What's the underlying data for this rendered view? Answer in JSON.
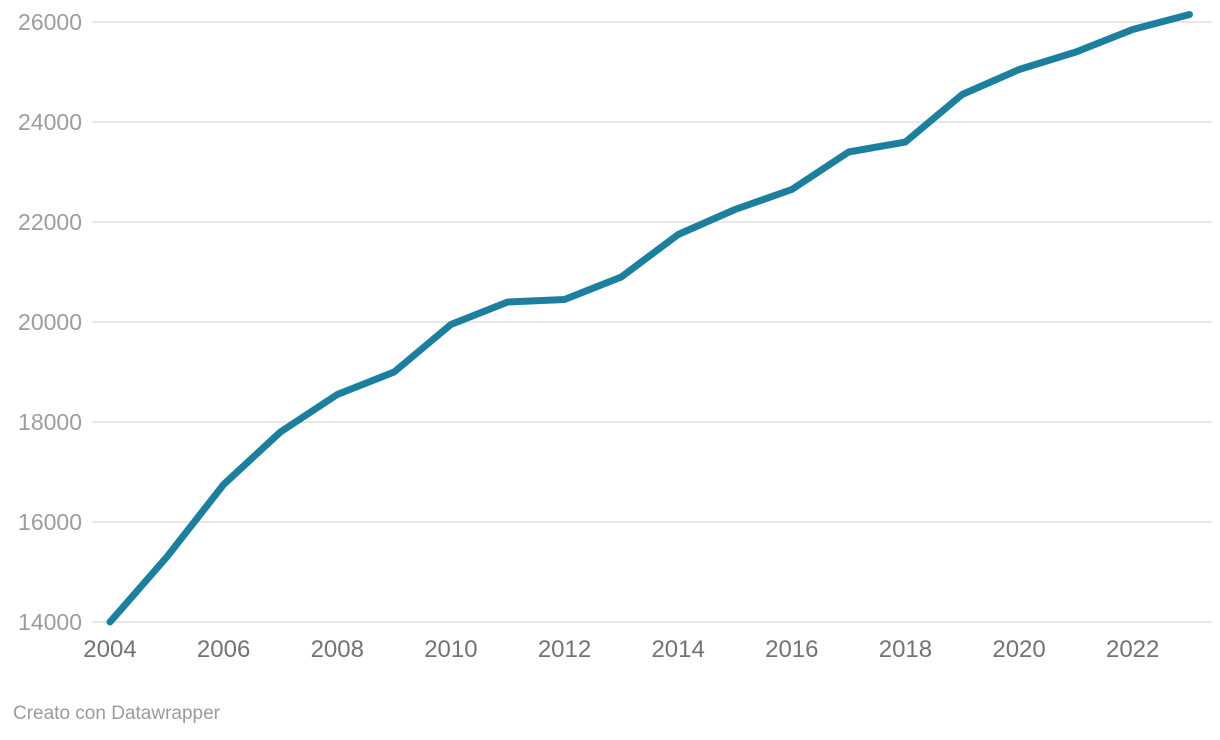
{
  "chart_data": {
    "type": "line",
    "title": "",
    "xlabel": "",
    "ylabel": "",
    "x": [
      2004,
      2005,
      2006,
      2007,
      2008,
      2009,
      2010,
      2011,
      2012,
      2013,
      2014,
      2015,
      2016,
      2017,
      2018,
      2019,
      2020,
      2021,
      2022,
      2023
    ],
    "series": [
      {
        "name": "value",
        "values": [
          14000,
          15300,
          16750,
          17800,
          18550,
          19000,
          19950,
          20400,
          20450,
          20900,
          21750,
          22250,
          22650,
          23400,
          23600,
          24550,
          25050,
          25400,
          25850,
          26150
        ]
      }
    ],
    "xlim": [
      2004,
      2023
    ],
    "ylim": [
      14000,
      26000
    ],
    "y_ticks": [
      14000,
      16000,
      18000,
      20000,
      22000,
      24000,
      26000
    ],
    "x_ticks": [
      2004,
      2006,
      2008,
      2010,
      2012,
      2014,
      2016,
      2018,
      2020,
      2022
    ],
    "grid": "horizontal-on",
    "legend": "none",
    "line_color": "#1d7f9e",
    "grid_color": "#e8e8e8",
    "y_label_color": "#9d9d9d",
    "x_label_color": "#737373"
  },
  "footer": {
    "credit": "Creato con Datawrapper"
  }
}
